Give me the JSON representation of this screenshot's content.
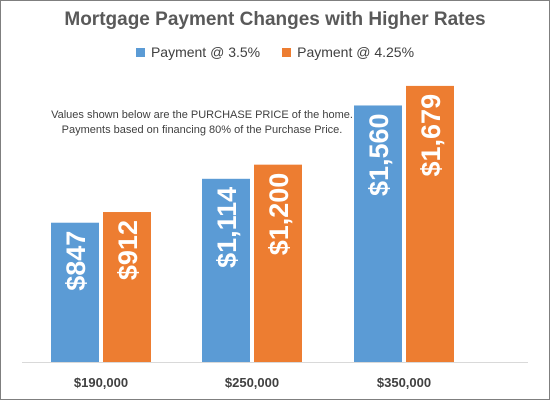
{
  "chart_data": {
    "type": "bar",
    "title": "Mortgage Payment Changes with Higher Rates",
    "categories": [
      "$190,000",
      "$250,000",
      "$350,000"
    ],
    "series": [
      {
        "name": "Payment @ 3.5%",
        "color": "#5b9bd5",
        "values": [
          847,
          1114,
          1560
        ],
        "labels": [
          "$847",
          "$1,114",
          "$1,560"
        ]
      },
      {
        "name": "Payment @ 4.25%",
        "color": "#ed7d31",
        "values": [
          912,
          1200,
          1679
        ],
        "labels": [
          "$912",
          "$1,200",
          "$1,679"
        ]
      }
    ],
    "annotation": [
      "Values shown below are the PURCHASE PRICE of the home.",
      "Payments based on financing 80% of the Purchase Price."
    ],
    "ylim": [
      0,
      1800
    ],
    "xlabel": "",
    "ylabel": "",
    "grid": false,
    "legend": "top-center"
  }
}
